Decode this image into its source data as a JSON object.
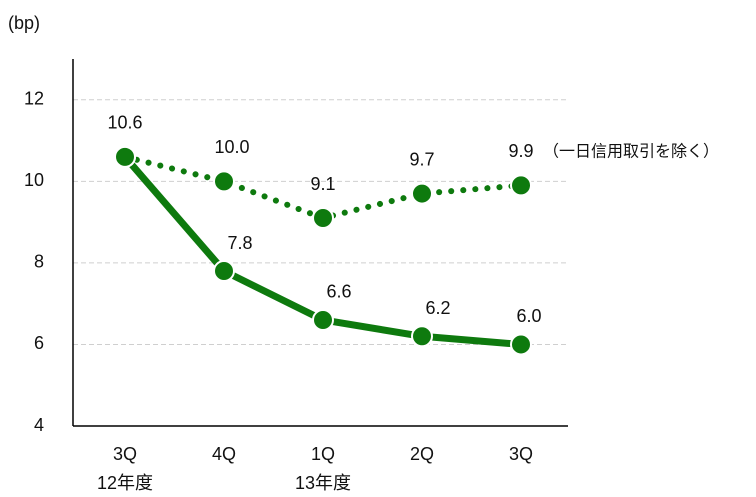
{
  "chart_data": {
    "type": "line",
    "y_label": "(bp)",
    "categories": [
      "3Q",
      "4Q",
      "1Q",
      "2Q",
      "3Q"
    ],
    "category_groups": [
      "12年度",
      null,
      "13年度",
      null,
      null
    ],
    "series": [
      {
        "name": "（一日信用取引を除く）",
        "color": "#0e7a0e",
        "style": "dotted",
        "values": [
          10.6,
          10.0,
          9.1,
          9.7,
          9.9
        ],
        "value_labels": [
          "10.6",
          "10.0",
          "9.1",
          "9.7",
          "9.9"
        ]
      },
      {
        "color": "#0e7a0e",
        "style": "solid",
        "values": [
          10.6,
          7.8,
          6.6,
          6.2,
          6.0
        ],
        "value_labels": [
          null,
          "7.8",
          "6.6",
          "6.2",
          "6.0"
        ]
      }
    ],
    "ylim": [
      4,
      13
    ],
    "yticks": [
      4,
      6,
      8,
      10,
      12
    ],
    "grid": true
  }
}
